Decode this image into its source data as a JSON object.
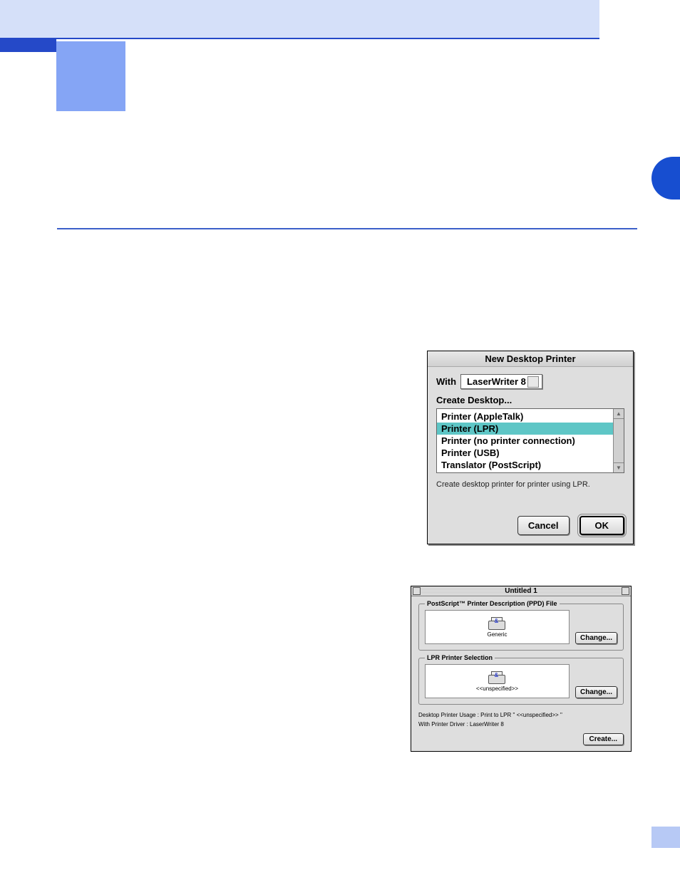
{
  "colors": {
    "banner_bg": "#d5e0f9",
    "banner_border": "#2549c8",
    "dark_blue": "#2549c8",
    "light_blue_square": "#85a5f5",
    "right_tab": "#174ed0",
    "right_fade": "#b7c9f5",
    "hr": "#3c5fc9",
    "selection": "#5ec6c6",
    "dialog_bg": "#dedede"
  },
  "dialog1": {
    "title": "New Desktop Printer",
    "with_label": "With",
    "select_value": "LaserWriter 8",
    "create_label": "Create Desktop...",
    "items": [
      {
        "label": "Printer (AppleTalk)",
        "selected": false
      },
      {
        "label": "Printer (LPR)",
        "selected": true
      },
      {
        "label": "Printer (no printer connection)",
        "selected": false
      },
      {
        "label": "Printer (USB)",
        "selected": false
      },
      {
        "label": "Translator (PostScript)",
        "selected": false
      }
    ],
    "description": "Create desktop printer for printer using LPR.",
    "cancel_label": "Cancel",
    "ok_label": "OK"
  },
  "dialog2": {
    "title": "Untitled 1",
    "group1": {
      "legend": "PostScript™ Printer Description (PPD) File",
      "icon_label": "Generic",
      "change_label": "Change..."
    },
    "group2": {
      "legend": "LPR Printer Selection",
      "icon_label": "<<unspecified>>",
      "change_label": "Change..."
    },
    "usage_line": "Desktop Printer Usage : Print to LPR \" <<unspecified>> \"",
    "driver_line": "With Printer Driver : LaserWriter 8",
    "create_label": "Create..."
  }
}
